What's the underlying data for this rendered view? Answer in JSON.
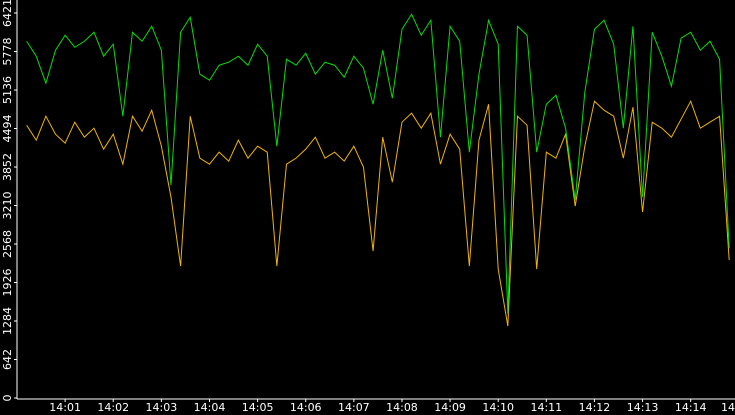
{
  "chart_data": {
    "type": "line",
    "x": [
      0.2,
      0.4,
      0.6,
      0.8,
      1.0,
      1.2,
      1.4,
      1.6,
      1.8,
      2.0,
      2.2,
      2.4,
      2.6,
      2.8,
      3.0,
      3.2,
      3.4,
      3.6,
      3.8,
      4.0,
      4.2,
      4.4,
      4.6,
      4.8,
      5.0,
      5.2,
      5.4,
      5.6,
      5.8,
      6.0,
      6.2,
      6.4,
      6.6,
      6.8,
      7.0,
      7.2,
      7.4,
      7.6,
      7.8,
      8.0,
      8.2,
      8.4,
      8.6,
      8.8,
      9.0,
      9.2,
      9.4,
      9.6,
      9.8,
      10.0,
      10.2,
      10.4,
      10.6,
      10.8,
      11.0,
      11.2,
      11.4,
      11.6,
      11.8,
      12.0,
      12.2,
      12.4,
      12.6,
      12.8,
      13.0,
      13.2,
      13.4,
      13.6,
      13.8,
      14.0,
      14.2,
      14.4,
      14.6,
      14.8
    ],
    "series": [
      {
        "color": "#00e000",
        "values": [
          5950,
          5700,
          5250,
          5800,
          6050,
          5850,
          5950,
          6100,
          5700,
          5900,
          4700,
          6100,
          5950,
          6200,
          5800,
          3550,
          6100,
          6350,
          5400,
          5300,
          5550,
          5600,
          5700,
          5550,
          5900,
          5700,
          4200,
          5650,
          5550,
          5750,
          5400,
          5600,
          5550,
          5350,
          5700,
          5500,
          4900,
          5800,
          5000,
          6150,
          6400,
          6050,
          6300,
          4350,
          6200,
          5950,
          4100,
          5400,
          6300,
          5900,
          1400,
          6200,
          6050,
          4100,
          4900,
          5050,
          4500,
          3300,
          5100,
          6150,
          6300,
          5900,
          4500,
          6200,
          3350,
          6100,
          5700,
          5200,
          6000,
          6100,
          5800,
          5950,
          5650,
          2500
        ]
      },
      {
        "color": "#f0b400",
        "values": [
          4550,
          4300,
          4700,
          4400,
          4250,
          4600,
          4350,
          4500,
          4150,
          4400,
          3900,
          4700,
          4450,
          4800,
          4200,
          3350,
          2200,
          4700,
          4000,
          3900,
          4100,
          3950,
          4300,
          4000,
          4200,
          4100,
          2200,
          3900,
          4000,
          4150,
          4350,
          4000,
          4100,
          3950,
          4200,
          3850,
          2450,
          4350,
          3600,
          4600,
          4750,
          4500,
          4750,
          3900,
          4400,
          4150,
          2200,
          4300,
          4900,
          2150,
          1200,
          4700,
          4550,
          2150,
          4100,
          4000,
          4400,
          3200,
          4200,
          4950,
          4800,
          4700,
          4000,
          4850,
          3100,
          4600,
          4500,
          4350,
          4650,
          4950,
          4500,
          4600,
          4700,
          2300
        ]
      }
    ],
    "xlim": [
      0,
      14.9
    ],
    "xticks": [
      {
        "value": 1,
        "label": "14:01"
      },
      {
        "value": 2,
        "label": "14:02"
      },
      {
        "value": 3,
        "label": "14:03"
      },
      {
        "value": 4,
        "label": "14:04"
      },
      {
        "value": 5,
        "label": "14:05"
      },
      {
        "value": 6,
        "label": "14:06"
      },
      {
        "value": 7,
        "label": "14:07"
      },
      {
        "value": 8,
        "label": "14:08"
      },
      {
        "value": 9,
        "label": "14:09"
      },
      {
        "value": 10,
        "label": "14:10"
      },
      {
        "value": 11,
        "label": "14:11"
      },
      {
        "value": 12,
        "label": "14:12"
      },
      {
        "value": 13,
        "label": "14:13"
      },
      {
        "value": 14,
        "label": "14:14"
      },
      {
        "value": 15,
        "label": "14"
      }
    ],
    "ylim": [
      0,
      6421
    ],
    "yticks": [
      0,
      642,
      1284,
      1926,
      2568,
      3210,
      3852,
      4494,
      5136,
      5778,
      6421
    ]
  }
}
